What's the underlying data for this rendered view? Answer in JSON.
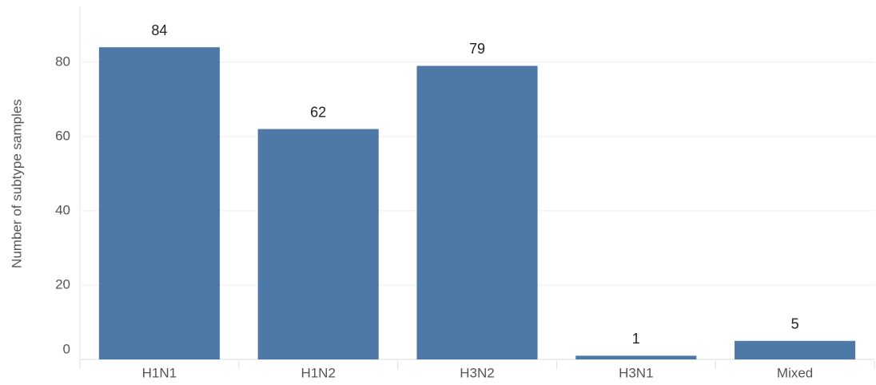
{
  "chart_data": {
    "type": "bar",
    "y_label": "Number of subtype samples",
    "categories": [
      "H1N1",
      "H1N2",
      "H3N2",
      "H3N1",
      "Mixed"
    ],
    "values": [
      84,
      62,
      79,
      1,
      5
    ],
    "color": "#4e79a7",
    "ylim": [
      0,
      95
    ],
    "yticks": [
      0,
      20,
      40,
      60,
      80
    ],
    "grid": true
  }
}
